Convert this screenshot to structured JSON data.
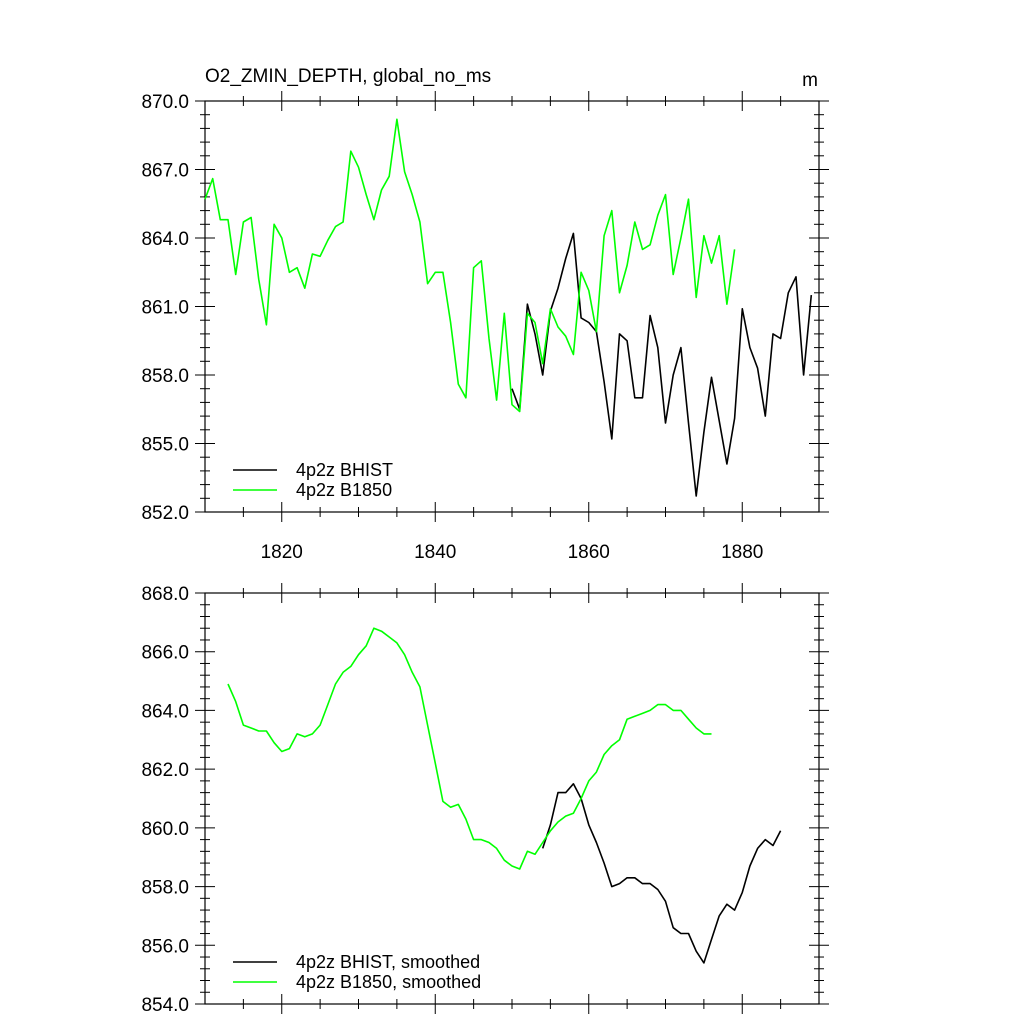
{
  "colors": {
    "bhist": "#000000",
    "b1850": "#00ff00"
  },
  "chart_data": [
    {
      "type": "line",
      "title": "O2_ZMIN_DEPTH, global_no_ms",
      "units": "m",
      "xlim": [
        1810,
        1890
      ],
      "ylim": [
        852.0,
        870.0
      ],
      "x_ticks": [
        1820,
        1840,
        1860,
        1880
      ],
      "y_ticks": [
        "852.0",
        "855.0",
        "858.0",
        "861.0",
        "864.0",
        "867.0",
        "870.0"
      ],
      "legend_position": "bottom-left",
      "series": [
        {
          "name": "4p2z BHIST",
          "color": "#000000",
          "x": [
            1850,
            1851,
            1852,
            1853,
            1854,
            1855,
            1856,
            1857,
            1858,
            1859,
            1860,
            1861,
            1862,
            1863,
            1864,
            1865,
            1866,
            1867,
            1868,
            1869,
            1870,
            1871,
            1872,
            1873,
            1874,
            1875,
            1876,
            1877,
            1878,
            1879,
            1880,
            1881,
            1882,
            1883,
            1884,
            1885,
            1886,
            1887,
            1888,
            1889
          ],
          "y": [
            857.4,
            856.5,
            861.1,
            859.8,
            858.0,
            860.8,
            861.8,
            863.1,
            864.2,
            860.5,
            860.3,
            859.9,
            857.7,
            855.2,
            859.8,
            859.5,
            857.0,
            857.0,
            860.6,
            859.2,
            855.9,
            858.0,
            859.2,
            855.9,
            852.7,
            855.5,
            857.9,
            856.0,
            854.1,
            856.1,
            860.9,
            859.2,
            858.3,
            856.2,
            859.8,
            859.6,
            861.6,
            862.3,
            858.0,
            861.5
          ]
        },
        {
          "name": "4p2z B1850",
          "color": "#00ff00",
          "x": [
            1810,
            1811,
            1812,
            1813,
            1814,
            1815,
            1816,
            1817,
            1818,
            1819,
            1820,
            1821,
            1822,
            1823,
            1824,
            1825,
            1826,
            1827,
            1828,
            1829,
            1830,
            1831,
            1832,
            1833,
            1834,
            1835,
            1836,
            1837,
            1838,
            1839,
            1840,
            1841,
            1842,
            1843,
            1844,
            1845,
            1846,
            1847,
            1848,
            1849,
            1850,
            1851,
            1852,
            1853,
            1854,
            1855,
            1856,
            1857,
            1858,
            1859,
            1860,
            1861,
            1862,
            1863,
            1864,
            1865,
            1866,
            1867,
            1868,
            1869,
            1870,
            1871,
            1872,
            1873,
            1874,
            1875,
            1876,
            1877,
            1878,
            1879
          ],
          "y": [
            865.7,
            866.6,
            864.8,
            864.8,
            862.4,
            864.7,
            864.9,
            862.2,
            860.2,
            864.6,
            864.0,
            862.5,
            862.7,
            861.8,
            863.3,
            863.2,
            863.9,
            864.5,
            864.7,
            867.8,
            867.1,
            865.9,
            864.8,
            866.1,
            866.7,
            869.2,
            866.9,
            865.9,
            864.7,
            862.0,
            862.5,
            862.5,
            860.3,
            857.6,
            857.0,
            862.7,
            863.0,
            859.6,
            856.9,
            860.7,
            856.7,
            856.4,
            860.7,
            860.3,
            858.5,
            860.9,
            860.1,
            859.7,
            858.9,
            862.5,
            861.7,
            859.9,
            864.1,
            865.2,
            861.6,
            862.8,
            864.7,
            863.5,
            863.7,
            865.0,
            865.9,
            862.4,
            864.0,
            865.7,
            861.4,
            864.1,
            862.9,
            864.1,
            861.1,
            863.5
          ]
        }
      ]
    },
    {
      "type": "line",
      "xlim": [
        1810,
        1890
      ],
      "ylim": [
        854.0,
        868.0
      ],
      "x_ticks": [
        1820,
        1840,
        1860,
        1880
      ],
      "y_ticks": [
        "854.0",
        "856.0",
        "858.0",
        "860.0",
        "862.0",
        "864.0",
        "866.0",
        "868.0"
      ],
      "legend_position": "bottom-left",
      "series": [
        {
          "name": "4p2z BHIST, smoothed",
          "color": "#000000",
          "x": [
            1854,
            1855,
            1856,
            1857,
            1858,
            1859,
            1860,
            1861,
            1862,
            1863,
            1864,
            1865,
            1866,
            1867,
            1868,
            1869,
            1870,
            1871,
            1872,
            1873,
            1874,
            1875,
            1876,
            1877,
            1878,
            1879,
            1880,
            1881,
            1882,
            1883,
            1884,
            1885
          ],
          "y": [
            859.3,
            860.1,
            861.2,
            861.2,
            861.5,
            861.0,
            860.1,
            859.5,
            858.8,
            858.0,
            858.1,
            858.3,
            858.3,
            858.1,
            858.1,
            857.9,
            857.5,
            856.6,
            856.4,
            856.4,
            855.8,
            855.4,
            856.2,
            857.0,
            857.4,
            857.2,
            857.8,
            858.7,
            859.3,
            859.6,
            859.4,
            859.9
          ]
        },
        {
          "name": "4p2z B1850, smoothed",
          "color": "#00ff00",
          "x": [
            1813,
            1814,
            1815,
            1816,
            1817,
            1818,
            1819,
            1820,
            1821,
            1822,
            1823,
            1824,
            1825,
            1826,
            1827,
            1828,
            1829,
            1830,
            1831,
            1832,
            1833,
            1834,
            1835,
            1836,
            1837,
            1838,
            1839,
            1840,
            1841,
            1842,
            1843,
            1844,
            1845,
            1846,
            1847,
            1848,
            1849,
            1850,
            1851,
            1852,
            1853,
            1854,
            1855,
            1856,
            1857,
            1858,
            1859,
            1860,
            1861,
            1862,
            1863,
            1864,
            1865,
            1866,
            1867,
            1868,
            1869,
            1870,
            1871,
            1872,
            1873,
            1874,
            1875,
            1876
          ],
          "y": [
            864.9,
            864.3,
            863.5,
            863.4,
            863.3,
            863.3,
            862.9,
            862.6,
            862.7,
            863.2,
            863.1,
            863.2,
            863.5,
            864.2,
            864.9,
            865.3,
            865.5,
            865.9,
            866.2,
            866.8,
            866.7,
            866.5,
            866.3,
            865.9,
            865.3,
            864.8,
            863.5,
            862.2,
            860.9,
            860.7,
            860.8,
            860.3,
            859.6,
            859.6,
            859.5,
            859.3,
            858.9,
            858.7,
            858.6,
            859.2,
            859.1,
            859.5,
            859.9,
            860.2,
            860.4,
            860.5,
            861.0,
            861.6,
            861.9,
            862.5,
            862.8,
            863.0,
            863.7,
            863.8,
            863.9,
            864.0,
            864.2,
            864.2,
            864.0,
            864.0,
            863.7,
            863.4,
            863.2,
            863.2
          ]
        }
      ]
    }
  ]
}
